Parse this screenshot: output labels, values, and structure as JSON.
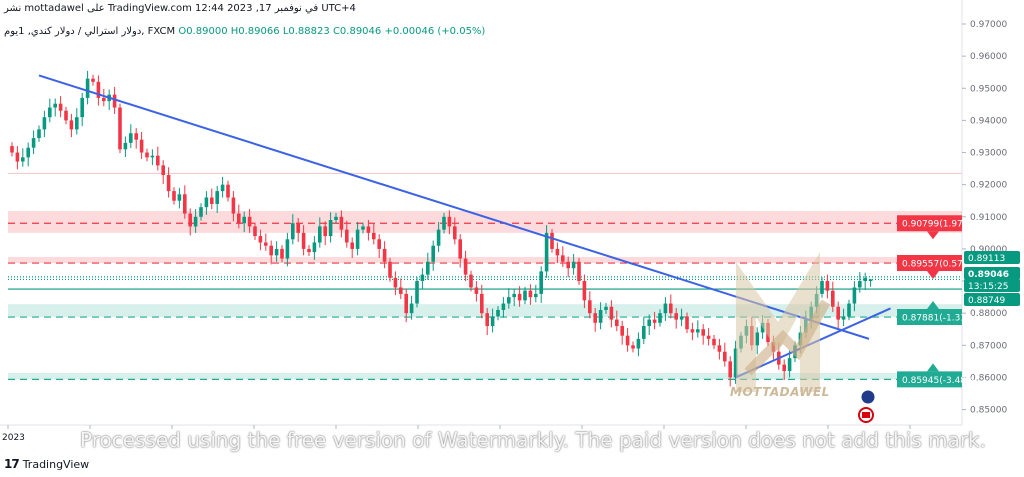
{
  "header": {
    "publisher_line": "نشر mottadawel على TradingView.com في نوفمبر 17, 2023 12:44 UTC+4",
    "symbol_line": "دولار استرالي / دولار كندي, 1يوم, FXCM",
    "open": "O0.89000",
    "high": "H0.89066",
    "low": "L0.88823",
    "close": "C0.89046",
    "change": "+0.00046 (+0.05%)"
  },
  "footer": {
    "logo": "TradingView",
    "logo_mark": "17"
  },
  "watermark": {
    "text": "Processed using the free version of Watermarkly. The paid version does not add this mark.",
    "brand": "MOTTADAWEL"
  },
  "colors": {
    "up": "#089981",
    "down": "#f23645",
    "trendline": "#3c63e6",
    "resistance": "#f23645",
    "support": "#22ab94",
    "price_label": "#131722"
  },
  "chart_data": {
    "type": "candlestick",
    "symbol": "AUDCAD",
    "timeframe": "1D",
    "ylim": [
      0.845,
      0.97
    ],
    "y_ticks": [
      "0.97000",
      "0.96000",
      "0.95000",
      "0.94000",
      "0.93000",
      "0.92000",
      "0.91000",
      "0.90000",
      "0.89000",
      "0.88000",
      "0.87000",
      "0.86000",
      "0.85000"
    ],
    "x_tick_labels": [
      "2023",
      "",
      "",
      "",
      "",
      "",
      "",
      "",
      "",
      "",
      "",
      ""
    ],
    "closes": [
      0.93,
      0.9272,
      0.9285,
      0.9315,
      0.9345,
      0.9372,
      0.941,
      0.944,
      0.9452,
      0.943,
      0.94,
      0.9372,
      0.941,
      0.947,
      0.953,
      0.952,
      0.947,
      0.946,
      0.948,
      0.944,
      0.931,
      0.933,
      0.936,
      0.934,
      0.93,
      0.9285,
      0.929,
      0.926,
      0.923,
      0.918,
      0.915,
      0.917,
      0.911,
      0.907,
      0.91,
      0.913,
      0.916,
      0.914,
      0.918,
      0.92,
      0.916,
      0.911,
      0.908,
      0.91,
      0.907,
      0.904,
      0.902,
      0.901,
      0.898,
      0.9,
      0.897,
      0.903,
      0.908,
      0.905,
      0.9,
      0.899,
      0.902,
      0.907,
      0.904,
      0.909,
      0.91,
      0.906,
      0.902,
      0.9,
      0.906,
      0.907,
      0.905,
      0.903,
      0.9,
      0.896,
      0.891,
      0.888,
      0.886,
      0.88,
      0.883,
      0.89,
      0.892,
      0.896,
      0.901,
      0.906,
      0.91,
      0.907,
      0.903,
      0.897,
      0.892,
      0.888,
      0.886,
      0.88,
      0.876,
      0.879,
      0.881,
      0.883,
      0.885,
      0.886,
      0.884,
      0.887,
      0.885,
      0.886,
      0.893,
      0.905,
      0.9,
      0.898,
      0.896,
      0.894,
      0.896,
      0.89,
      0.884,
      0.88,
      0.877,
      0.881,
      0.882,
      0.878,
      0.876,
      0.873,
      0.87,
      0.869,
      0.872,
      0.876,
      0.878,
      0.877,
      0.88,
      0.883,
      0.88,
      0.878,
      0.879,
      0.875,
      0.874,
      0.875,
      0.873,
      0.872,
      0.87,
      0.868,
      0.865,
      0.86,
      0.869,
      0.873,
      0.876,
      0.87,
      0.874,
      0.877,
      0.871,
      0.868,
      0.864,
      0.862,
      0.866,
      0.87,
      0.874,
      0.878,
      0.882,
      0.886,
      0.89,
      0.887,
      0.882,
      0.878,
      0.879,
      0.883,
      0.888,
      0.89,
      0.891,
      0.8905
    ],
    "last_candle": {
      "open": 0.89,
      "high": 0.89066,
      "low": 0.88823,
      "close": 0.89046
    },
    "trendlines": [
      {
        "from": {
          "bar": 5,
          "price": 0.954
        },
        "to": {
          "bar": 155,
          "price": 0.872
        }
      },
      {
        "from": {
          "bar": 134,
          "price": 0.86
        },
        "to": {
          "bar": 159,
          "price": 0.8815
        }
      }
    ],
    "zones": [
      {
        "kind": "resistance",
        "from": 0.905,
        "to": 0.9118
      },
      {
        "kind": "resistance",
        "from": 0.8956,
        "to": 0.8975
      },
      {
        "kind": "support",
        "from": 0.8788,
        "to": 0.8828
      },
      {
        "kind": "support",
        "from": 0.8594,
        "to": 0.8614
      }
    ],
    "lines": [
      {
        "price": 0.908,
        "style": "dashed",
        "color": "#f23645"
      },
      {
        "price": 0.8956,
        "style": "dashed",
        "color": "#f23645"
      },
      {
        "price": 0.8788,
        "style": "dashed",
        "color": "#22ab94"
      },
      {
        "price": 0.8594,
        "style": "dashed",
        "color": "#22ab94"
      },
      {
        "price": 0.8913,
        "style": "dotted",
        "color": "#089981"
      },
      {
        "price": 0.8905,
        "style": "dotted",
        "color": "#089981"
      },
      {
        "price": 0.8875,
        "style": "solid",
        "color": "#089981"
      }
    ],
    "price_labels": [
      {
        "price": 0.908,
        "text": "0.90799(1.97%",
        "color": "#f23645"
      },
      {
        "price": 0.8956,
        "text": "0.89557(0.57%",
        "color": "#f23645"
      },
      {
        "price": 0.8788,
        "text": "0.87881(-1.31%",
        "color": "#22ab94"
      },
      {
        "price": 0.8594,
        "text": "0.85945(-3.48%",
        "color": "#22ab94"
      }
    ],
    "axis_labels": [
      {
        "price": 0.8913,
        "text": "0.89113",
        "bg": "#089981",
        "fg": "#ffffff"
      },
      {
        "price": 0.8905,
        "text": "0.89046",
        "bg": "#089981",
        "fg": "#ffffff",
        "bold": true
      },
      {
        "price": 0.8871,
        "text": "13:15:25",
        "bg": "#089981",
        "fg": "#ffffff"
      },
      {
        "price": 0.8875,
        "text": "0.88749",
        "bg": "#089981",
        "fg": "#ffffff"
      }
    ]
  }
}
